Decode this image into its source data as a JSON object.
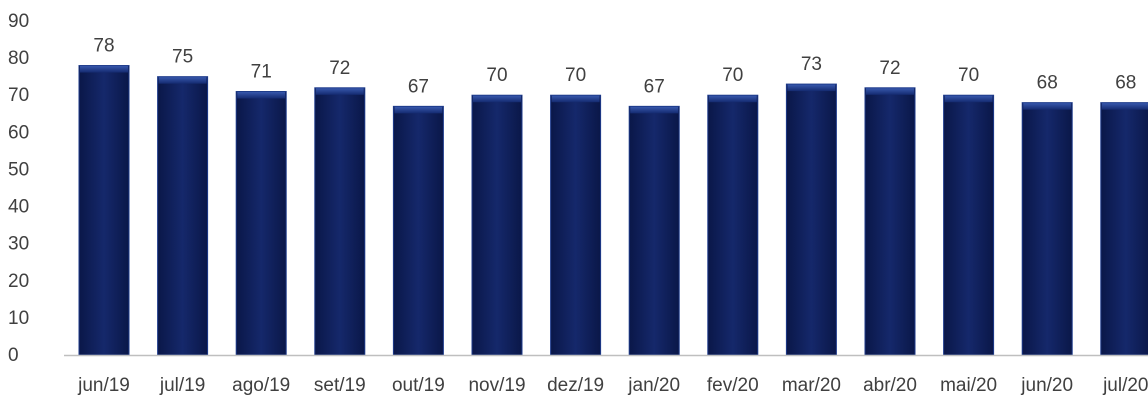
{
  "chart_data": {
    "type": "bar",
    "categories": [
      "jun/19",
      "jul/19",
      "ago/19",
      "set/19",
      "out/19",
      "nov/19",
      "dez/19",
      "jan/20",
      "fev/20",
      "mar/20",
      "abr/20",
      "mai/20",
      "jun/20",
      "jul/20"
    ],
    "values": [
      78,
      75,
      71,
      72,
      67,
      70,
      70,
      67,
      70,
      73,
      72,
      70,
      68,
      68
    ],
    "data_labels": [
      "78",
      "75",
      "71",
      "72",
      "67",
      "70",
      "70",
      "67",
      "70",
      "73",
      "72",
      "70",
      "68",
      "68"
    ],
    "title": "",
    "xlabel": "",
    "ylabel": "",
    "ylim": [
      0,
      90
    ],
    "yticks": [
      0,
      10,
      20,
      30,
      40,
      50,
      60,
      70,
      80,
      90
    ],
    "ytick_labels": [
      "0",
      "10",
      "20",
      "30",
      "40",
      "50",
      "60",
      "70",
      "80",
      "90"
    ],
    "grid": false,
    "legend": "none",
    "colors": {
      "bar": "#0f1f5c",
      "bar_edge": "#1d3a8a",
      "axis": "#bfbfbf",
      "text": "#404040"
    }
  }
}
